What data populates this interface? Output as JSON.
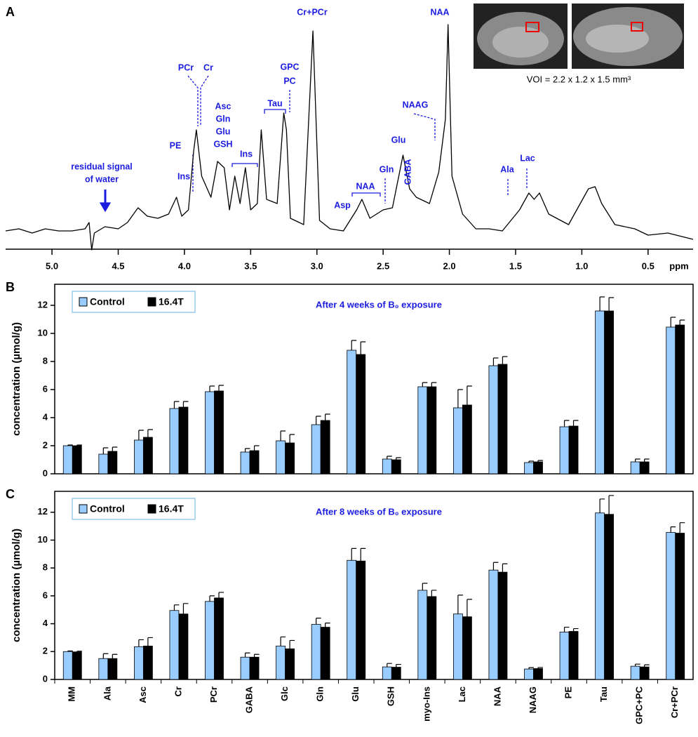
{
  "chart_data": [
    {
      "type": "line",
      "panel": "A",
      "color": "#000000",
      "x": [
        5.35,
        5.25,
        5.15,
        5.05,
        4.95,
        4.85,
        4.75,
        4.72,
        4.7,
        4.68,
        4.6,
        4.5,
        4.43,
        4.35,
        4.28,
        4.2,
        4.12,
        4.06,
        4.02,
        3.97,
        3.93,
        3.91,
        3.87,
        3.8,
        3.75,
        3.7,
        3.66,
        3.62,
        3.58,
        3.54,
        3.5,
        3.45,
        3.42,
        3.38,
        3.3,
        3.25,
        3.23,
        3.2,
        3.1,
        3.03,
        2.98,
        2.9,
        2.8,
        2.7,
        2.66,
        2.6,
        2.5,
        2.43,
        2.35,
        2.3,
        2.25,
        2.15,
        2.08,
        2.03,
        2.01,
        1.98,
        1.9,
        1.8,
        1.7,
        1.6,
        1.47,
        1.4,
        1.36,
        1.32,
        1.25,
        1.1,
        0.95,
        0.9,
        0.85,
        0.75,
        0.6,
        0.5,
        0.35,
        0.16
      ],
      "values": [
        2,
        3,
        1,
        3,
        2,
        2,
        3,
        6,
        -7,
        1,
        4,
        3,
        6,
        13,
        9,
        8,
        10,
        18,
        9,
        12,
        40,
        50,
        28,
        18,
        35,
        32,
        12,
        28,
        15,
        32,
        12,
        15,
        50,
        17,
        15,
        58,
        50,
        8,
        5,
        97,
        7,
        3,
        2,
        12,
        17,
        8,
        12,
        13,
        38,
        22,
        18,
        15,
        30,
        55,
        100,
        28,
        10,
        3,
        3,
        2,
        12,
        20,
        17,
        20,
        10,
        5,
        22,
        23,
        15,
        5,
        3,
        0,
        1,
        -2
      ],
      "xlim": [
        5.35,
        0.16
      ],
      "xticks": [
        {
          "value": 5,
          "label": "5.0"
        },
        4.5,
        {
          "value": 4,
          "label": "4.0"
        },
        3.5,
        {
          "value": 3,
          "label": "3.0"
        },
        2.5,
        {
          "value": 2,
          "label": "2.0"
        },
        1.5,
        {
          "value": 1,
          "label": "1.0"
        },
        0.5
      ],
      "xlabel": "ppm",
      "annotations": [
        "residual signal",
        "of water",
        "PE",
        "Ins",
        "PCr",
        "Cr",
        "Asc",
        "Gln",
        "Glu",
        "GSH",
        "Ins",
        "Tau",
        "GPC",
        "PC",
        "Cr+PCr",
        "Asp",
        "NAA",
        "Gln",
        "Glu",
        "GABA",
        "NAAG",
        "NAA",
        "Ala",
        "Lac"
      ],
      "caption": "VOI = 2.2 x 1.2 x 1.5 mm³"
    },
    {
      "type": "bar",
      "panel": "B",
      "title": "After 4 weeks of B₀ exposure",
      "ylabel": "concentration (µmol/g)",
      "ylim": [
        0,
        13.5
      ],
      "yticks": [
        0,
        2,
        4,
        6,
        8,
        10,
        12
      ],
      "series": [
        {
          "name": "Control",
          "color": "#99ccff",
          "values": [
            2.0,
            1.4,
            2.4,
            4.65,
            5.85,
            1.55,
            2.35,
            3.5,
            8.8,
            1.05,
            6.2,
            4.7,
            7.7,
            0.8,
            3.35,
            11.6,
            0.85,
            10.45
          ],
          "errors": [
            0.05,
            0.45,
            0.7,
            0.5,
            0.4,
            0.25,
            0.7,
            0.6,
            0.7,
            0.2,
            0.3,
            1.3,
            0.55,
            0.1,
            0.45,
            1.0,
            0.2,
            0.7
          ]
        },
        {
          "name": "16.4T",
          "color": "#000000",
          "values": [
            2.0,
            1.6,
            2.6,
            4.75,
            5.9,
            1.65,
            2.2,
            3.8,
            8.5,
            1.0,
            6.2,
            4.9,
            7.8,
            0.85,
            3.4,
            11.6,
            0.85,
            10.6
          ],
          "errors": [
            0.05,
            0.3,
            0.55,
            0.4,
            0.4,
            0.35,
            0.6,
            0.45,
            0.9,
            0.15,
            0.3,
            1.35,
            0.55,
            0.1,
            0.4,
            0.95,
            0.2,
            0.35
          ]
        }
      ]
    },
    {
      "type": "bar",
      "panel": "C",
      "title": "After 8 weeks of B₀ exposure",
      "ylabel": "concentration (µmol/g)",
      "ylim": [
        0,
        13.5
      ],
      "yticks": [
        0,
        2,
        4,
        6,
        8,
        10,
        12
      ],
      "categories": [
        "MM",
        "Ala",
        "Asc",
        "Cr",
        "PCr",
        "GABA",
        "Glc",
        "Gln",
        "Glu",
        "GSH",
        "myo-Ins",
        "Lac",
        "NAA",
        "NAAG",
        "PE",
        "Tau",
        "GPC+PC",
        "Cr+PCr"
      ],
      "series": [
        {
          "name": "Control",
          "color": "#99ccff",
          "values": [
            2.0,
            1.5,
            2.35,
            4.95,
            5.6,
            1.6,
            2.4,
            3.95,
            8.55,
            0.9,
            6.4,
            4.7,
            7.85,
            0.75,
            3.4,
            11.95,
            0.95,
            10.55
          ],
          "errors": [
            0.05,
            0.35,
            0.5,
            0.4,
            0.4,
            0.3,
            0.65,
            0.45,
            0.85,
            0.25,
            0.5,
            1.35,
            0.55,
            0.1,
            0.35,
            1.0,
            0.15,
            0.4
          ]
        },
        {
          "name": "16.4T",
          "color": "#000000",
          "values": [
            1.98,
            1.5,
            2.4,
            4.7,
            5.85,
            1.6,
            2.2,
            3.75,
            8.5,
            0.88,
            5.95,
            4.5,
            7.7,
            0.78,
            3.45,
            11.85,
            0.9,
            10.5
          ],
          "errors": [
            0.05,
            0.3,
            0.6,
            0.75,
            0.4,
            0.2,
            0.6,
            0.3,
            0.9,
            0.2,
            0.45,
            1.25,
            0.6,
            0.08,
            0.2,
            1.35,
            0.15,
            0.75
          ]
        }
      ]
    }
  ]
}
